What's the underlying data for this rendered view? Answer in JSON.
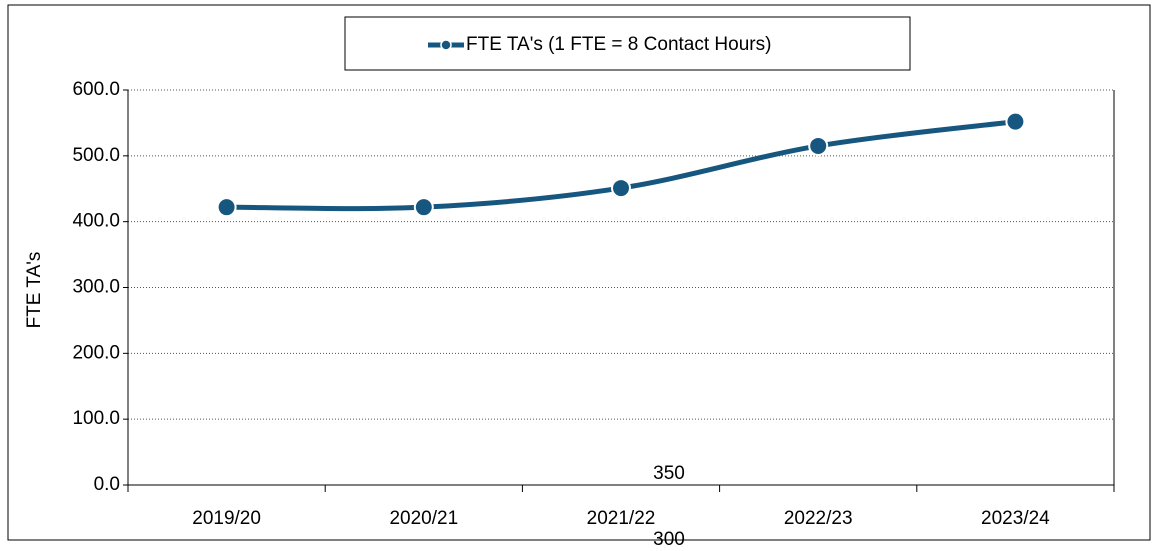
{
  "chart_data": {
    "type": "line",
    "y_label": "FTE TA's",
    "categories": [
      "2019/20",
      "2020/21",
      "2021/22",
      "2022/23",
      "2023/24"
    ],
    "series": [
      {
        "name": "FTE TA's (1 FTE = 8 Contact Hours)",
        "color": "#17577f",
        "values": [
          422,
          422,
          451,
          515,
          552
        ]
      }
    ],
    "ylim": [
      0,
      600
    ],
    "yticks": [
      {
        "value": 0,
        "label": "0.0"
      },
      {
        "value": 100,
        "label": "100.0"
      },
      {
        "value": 200,
        "label": "200.0"
      },
      {
        "value": 300,
        "label": "300.0"
      },
      {
        "value": 400,
        "label": "400.0"
      },
      {
        "value": 500,
        "label": "500.0"
      },
      {
        "value": 600,
        "label": "600.0"
      }
    ],
    "grid": true,
    "legend": "top",
    "annotations": [
      "350",
      "300"
    ]
  }
}
